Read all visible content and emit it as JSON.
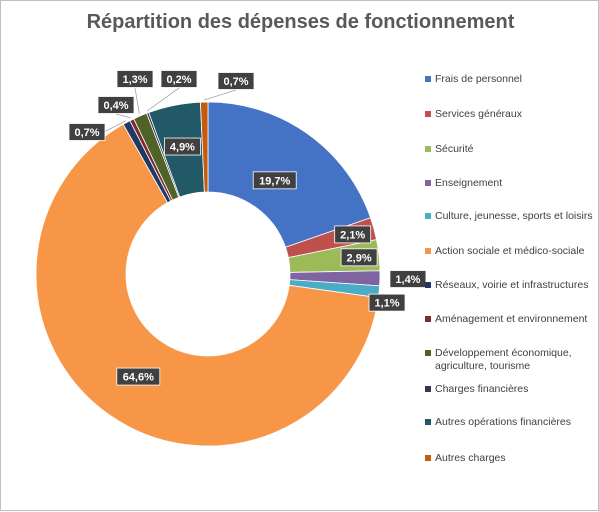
{
  "chart_data": {
    "type": "donut",
    "title": "Répartition des dépenses de fonctionnement",
    "legend_position": "right",
    "series": [
      {
        "name": "Frais de personnel",
        "value": 19.7,
        "label": "19,7%",
        "color": "#4472C4"
      },
      {
        "name": "Services généraux",
        "value": 2.1,
        "label": "2,1%",
        "color": "#C0504D"
      },
      {
        "name": "Sécurité",
        "value": 2.9,
        "label": "2,9%",
        "color": "#9BBB59"
      },
      {
        "name": "Enseignement",
        "value": 1.4,
        "label": "1,4%",
        "color": "#8064A2"
      },
      {
        "name": "Culture, jeunesse, sports et loisirs",
        "value": 1.1,
        "label": "1,1%",
        "color": "#4BACC6"
      },
      {
        "name": "Action sociale et médico-sociale",
        "value": 64.6,
        "label": "64,6%",
        "color": "#F79646"
      },
      {
        "name": "Réseaux, voirie et infrastructures",
        "value": 0.7,
        "label": "0,7%",
        "color": "#1F3864"
      },
      {
        "name": "Aménagement et environnement",
        "value": 0.4,
        "label": "0,4%",
        "color": "#7B2C2C"
      },
      {
        "name": "Développement économique, agriculture, tourisme",
        "value": 1.3,
        "label": "1,3%",
        "color": "#4F6228"
      },
      {
        "name": "Charges financières",
        "value": 0.2,
        "label": "0,2%",
        "color": "#3F3151"
      },
      {
        "name": "Autres opérations financières",
        "value": 4.9,
        "label": "4,9%",
        "color": "#215967"
      },
      {
        "name": "Autres charges",
        "value": 0.7,
        "label": "0,7%",
        "color": "#C55A11"
      }
    ]
  }
}
